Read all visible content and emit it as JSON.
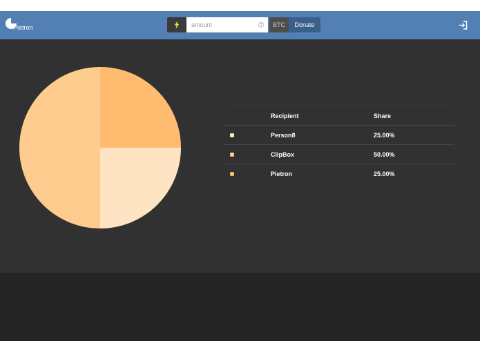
{
  "navbar": {
    "brand": "Pietron",
    "amount_placeholder": "amount",
    "currency": "BTC",
    "donate_label": "Donate"
  },
  "table": {
    "headers": {
      "recipient": "Recipient",
      "share": "Share"
    },
    "rows": [
      {
        "recipient": "Person8",
        "share": "25.00%",
        "color": "#ffe4c4"
      },
      {
        "recipient": "ClipBox",
        "share": "50.00%",
        "color": "#ffcc8f"
      },
      {
        "recipient": "Pietron",
        "share": "25.00%",
        "color": "#ffbc70"
      }
    ]
  },
  "chart_data": {
    "type": "pie",
    "categories": [
      "Person8",
      "ClipBox",
      "Pietron"
    ],
    "values": [
      25,
      50,
      25
    ],
    "colors": [
      "#ffe4c4",
      "#ffcc8f",
      "#ffbc70"
    ]
  }
}
